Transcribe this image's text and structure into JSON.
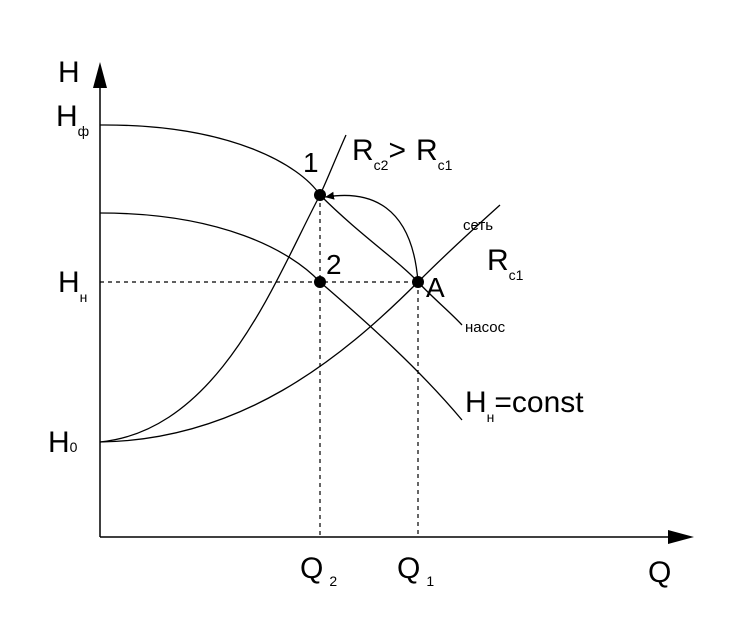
{
  "axes": {
    "y": "H",
    "x": "Q"
  },
  "y_labels": [
    {
      "main": "H",
      "sub": "ф"
    },
    {
      "main": "H",
      "sub": "н"
    },
    {
      "main": "H",
      "sub": "0"
    }
  ],
  "x_labels": [
    {
      "main": "Q",
      "sub": "2"
    },
    {
      "main": "Q",
      "sub": "1"
    }
  ],
  "points": [
    "1",
    "2",
    "A"
  ],
  "curve_labels": {
    "comparison": {
      "left_main": "R",
      "left_sub": "c2",
      "op": ">",
      "right_main": "R",
      "right_sub": "c1"
    },
    "network": "сеть",
    "r_c1": {
      "main": "R",
      "sub": "c1"
    },
    "pump": "насос",
    "const": {
      "main": "H",
      "sub": "н",
      "rest": "=const"
    }
  }
}
